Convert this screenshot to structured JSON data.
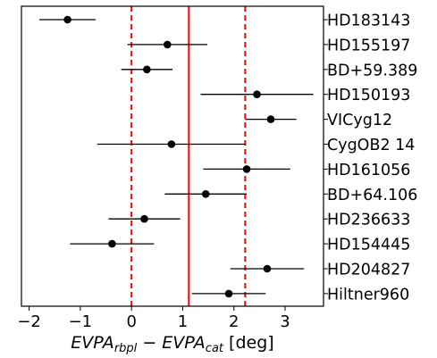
{
  "chart_data": {
    "type": "scatter",
    "subtype": "forest-errorbar",
    "title": "",
    "xlabel": {
      "parts": [
        {
          "text": "EVPA",
          "italic": true,
          "sub": false
        },
        {
          "text": "rbpl",
          "italic": true,
          "sub": true
        },
        {
          "text": " − ",
          "italic": false,
          "sub": false
        },
        {
          "text": "EVPA",
          "italic": true,
          "sub": false
        },
        {
          "text": "cat",
          "italic": true,
          "sub": true
        },
        {
          "text": " [deg]",
          "italic": false,
          "sub": false
        }
      ]
    },
    "ylabel": "",
    "xlim": [
      -2.15,
      3.75
    ],
    "xticks": [
      -2,
      -1,
      0,
      1,
      2,
      3
    ],
    "xtick_labels": [
      "−2",
      "−1",
      "0",
      "1",
      "2",
      "3"
    ],
    "y_axis_position": "right",
    "grid": false,
    "colors": {
      "points": "#000000",
      "reference_lines": "#ff0000",
      "axes": "#000000"
    },
    "reference_lines": [
      {
        "x": 0.0,
        "style": "dashed"
      },
      {
        "x": 1.12,
        "style": "solid"
      },
      {
        "x": 2.22,
        "style": "dashed"
      }
    ],
    "points": [
      {
        "label": "HD183143",
        "x": -1.25,
        "xerr_low": 0.55,
        "xerr_high": 0.55
      },
      {
        "label": "HD155197",
        "x": 0.7,
        "xerr_low": 0.78,
        "xerr_high": 0.78
      },
      {
        "label": "BD+59.389",
        "x": 0.3,
        "xerr_low": 0.5,
        "xerr_high": 0.5
      },
      {
        "label": "HD150193",
        "x": 2.45,
        "xerr_low": 1.1,
        "xerr_high": 1.1
      },
      {
        "label": "VICyg12",
        "x": 2.72,
        "xerr_low": 0.5,
        "xerr_high": 0.5
      },
      {
        "label": "CygOB2 14",
        "x": 0.78,
        "xerr_low": 1.45,
        "xerr_high": 1.45
      },
      {
        "label": "HD161056",
        "x": 2.25,
        "xerr_low": 0.85,
        "xerr_high": 0.85
      },
      {
        "label": "BD+64.106",
        "x": 1.45,
        "xerr_low": 0.8,
        "xerr_high": 0.8
      },
      {
        "label": "HD236633",
        "x": 0.25,
        "xerr_low": 0.7,
        "xerr_high": 0.7
      },
      {
        "label": "HD154445",
        "x": -0.38,
        "xerr_low": 0.82,
        "xerr_high": 0.82
      },
      {
        "label": "HD204827",
        "x": 2.65,
        "xerr_low": 0.72,
        "xerr_high": 0.72
      },
      {
        "label": "Hiltner960",
        "x": 1.9,
        "xerr_low": 0.72,
        "xerr_high": 0.72
      }
    ]
  }
}
